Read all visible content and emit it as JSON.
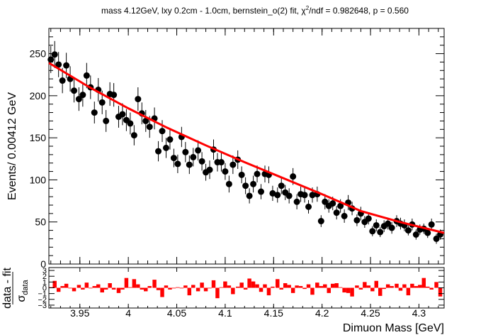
{
  "chart_data": [
    {
      "type": "scatter",
      "title_parts": {
        "pre": "mass 4.12GeV, lxy 0.2cm - 1.0cm, bernstein_o(2) fit, ",
        "chi": "χ",
        "sup": "2",
        "post": "/ndf = 0.982648, p = 0.560"
      },
      "xlabel": "",
      "ylabel": "Events/ 0.00412 GeV",
      "xlim": [
        3.918,
        4.326
      ],
      "ylim": [
        0,
        280
      ],
      "x_ticks": [
        "3.95",
        "4",
        "4.05",
        "4.1",
        "4.15",
        "4.2",
        "4.25",
        "4.3"
      ],
      "y_ticks": [
        "0",
        "50",
        "100",
        "150",
        "200",
        "250"
      ],
      "marker_color": "#000000",
      "fit_color": "#ff0000",
      "fit_curve": {
        "x": [
          3.918,
          3.96,
          4.0,
          4.04,
          4.08,
          4.12,
          4.16,
          4.2,
          4.24,
          4.28,
          4.326
        ],
        "y": [
          239,
          210,
          185,
          162,
          141,
          121,
          102,
          83,
          63,
          50,
          37
        ]
      },
      "series": [
        {
          "x": [
            3.92,
            3.924,
            3.928,
            3.932,
            3.936,
            3.94,
            3.944,
            3.949,
            3.953,
            3.957,
            3.961,
            3.965,
            3.969,
            3.973,
            3.977,
            3.981,
            3.985,
            3.99,
            3.994,
            3.998,
            4.002,
            4.006,
            4.01,
            4.014,
            4.018,
            4.022,
            4.027,
            4.031,
            4.035,
            4.039,
            4.043,
            4.047,
            4.051,
            4.055,
            4.059,
            4.063,
            4.067,
            4.072,
            4.076,
            4.08,
            4.084,
            4.088,
            4.092,
            4.096,
            4.1,
            4.104,
            4.108,
            4.113,
            4.117,
            4.121,
            4.125,
            4.129,
            4.133,
            4.137,
            4.141,
            4.145,
            4.149,
            4.154,
            4.158,
            4.162,
            4.166,
            4.17,
            4.174,
            4.178,
            4.182,
            4.186,
            4.19,
            4.195,
            4.199,
            4.203,
            4.207,
            4.211,
            4.215,
            4.219,
            4.223,
            4.227,
            4.231,
            4.236,
            4.24,
            4.244,
            4.248,
            4.252,
            4.256,
            4.26,
            4.264,
            4.268,
            4.272,
            4.277,
            4.281,
            4.285,
            4.289,
            4.293,
            4.297,
            4.301,
            4.305,
            4.309,
            4.313,
            4.318,
            4.322
          ],
          "y": [
            243,
            249,
            237,
            218,
            236,
            220,
            206,
            196,
            201,
            224,
            210,
            180,
            207,
            192,
            170,
            202,
            201,
            175,
            178,
            171,
            167,
            153,
            196,
            179,
            170,
            163,
            173,
            134,
            158,
            138,
            148,
            126,
            119,
            151,
            133,
            118,
            127,
            135,
            122,
            109,
            112,
            136,
            121,
            121,
            110,
            95,
            118,
            124,
            106,
            93,
            81,
            95,
            107,
            86,
            107,
            106,
            84,
            82,
            93,
            85,
            81,
            104,
            74,
            83,
            82,
            68,
            82,
            83,
            51,
            74,
            69,
            72,
            61,
            69,
            57,
            73,
            66,
            52,
            60,
            50,
            54,
            39,
            46,
            38,
            45,
            48,
            43,
            51,
            48,
            46,
            40,
            47,
            35,
            41,
            42,
            37,
            47,
            30,
            35
          ],
          "err": [
            16,
            16,
            15,
            15,
            15,
            15,
            14,
            14,
            14,
            15,
            14,
            13,
            14,
            14,
            13,
            14,
            14,
            13,
            13,
            13,
            13,
            12,
            14,
            13,
            13,
            13,
            13,
            12,
            13,
            12,
            12,
            11,
            11,
            12,
            12,
            11,
            11,
            12,
            11,
            10,
            11,
            12,
            11,
            11,
            10,
            10,
            11,
            11,
            10,
            10,
            9,
            10,
            10,
            9,
            10,
            10,
            9,
            9,
            10,
            9,
            9,
            10,
            9,
            9,
            9,
            8,
            9,
            9,
            7,
            9,
            8,
            8,
            8,
            8,
            8,
            9,
            8,
            7,
            8,
            7,
            7,
            6,
            7,
            6,
            7,
            7,
            7,
            7,
            7,
            7,
            6,
            7,
            6,
            6,
            6,
            6,
            7,
            6,
            6
          ]
        }
      ]
    },
    {
      "type": "bar",
      "xlabel": "Dimuon Mass [GeV]",
      "ylabel_main": "data - fit",
      "ylabel_sigma": "σ",
      "ylabel_sub": "data",
      "ylim": [
        -3.5,
        3.5
      ],
      "y_ticks": [
        "3",
        "2",
        "1",
        "0",
        "−1",
        "−2",
        "−3"
      ],
      "bar_color": "#ff0000",
      "values": [
        0.1,
        1.2,
        -0.7,
        0.3,
        0.7,
        -0.1,
        -0.6,
        0.5,
        -0.3,
        0.9,
        0.0,
        0.3,
        0.6,
        -0.8,
        -0.3,
        0.8,
        -0.3,
        -0.9,
        -0.3,
        1.7,
        0.1,
        1.5,
        0.6,
        -0.3,
        -0.6,
        0.3,
        1.4,
        -0.4,
        -1.6,
        0.4,
        -0.3,
        -0.1,
        0.1,
        -0.1,
        0.4,
        -1.3,
        0.5,
        -0.6,
        0.9,
        -0.6,
        0.0,
        1.3,
        -1.8,
        0.1,
        1.1,
        0.4,
        -1.1,
        0.2,
        0.9,
        -0.3,
        1.6,
        1.1,
        0.6,
        -0.7,
        0.6,
        -1.3,
        0.2,
        1.5,
        -0.3,
        0.8,
        0.5,
        -0.9,
        0.4,
        0.3,
        -0.2,
        0.6,
        -1.2,
        0.9,
        0.3,
        0.6,
        -0.9,
        0.7,
        0.8,
        0.1,
        -0.8,
        -0.9,
        -1.5,
        0.4,
        -0.3,
        1.0,
        0.4,
        -0.6,
        1.2,
        -1.4,
        -0.2,
        0.6,
        0.3,
        0.7,
        -0.5,
        0.6,
        -1.3,
        0.7,
        0.3,
        0.5,
        1.7,
        0.2,
        -0.3,
        1.0,
        -1.5
      ]
    }
  ]
}
